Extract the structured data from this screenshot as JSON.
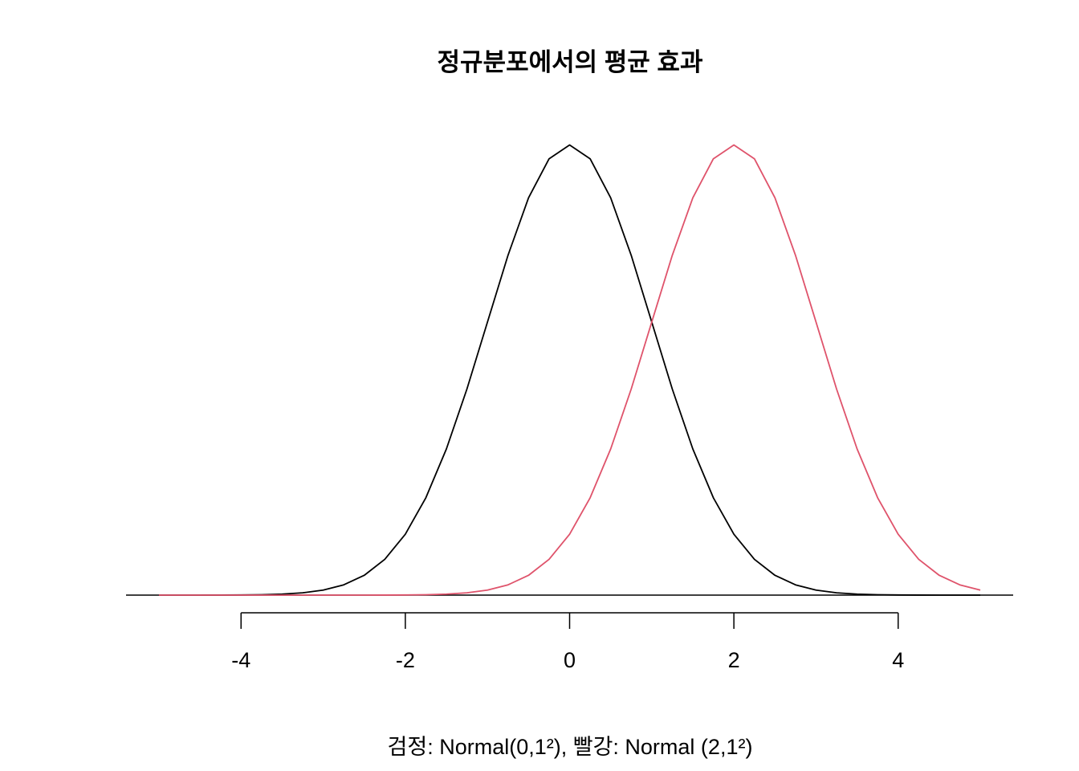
{
  "chart_data": {
    "type": "line",
    "title": "정규분포에서의 평균 효과",
    "xlabel": "검정: Normal(0,1²), 빨강: Normal (2,1²)",
    "x": [
      -5,
      -4.75,
      -4.5,
      -4.25,
      -4,
      -3.75,
      -3.5,
      -3.25,
      -3,
      -2.75,
      -2.5,
      -2.25,
      -2,
      -1.75,
      -1.5,
      -1.25,
      -1,
      -0.75,
      -0.5,
      -0.25,
      0,
      0.25,
      0.5,
      0.75,
      1,
      1.25,
      1.5,
      1.75,
      2,
      2.25,
      2.5,
      2.75,
      3,
      3.25,
      3.5,
      3.75,
      4,
      4.25,
      4.5,
      4.75,
      5
    ],
    "series": [
      {
        "name": "Normal(0,1²)",
        "color": "#000000",
        "values": [
          0,
          1e-05,
          2e-05,
          5e-05,
          0.00013,
          0.00035,
          0.00087,
          0.00203,
          0.00443,
          0.00909,
          0.01753,
          0.03174,
          0.05399,
          0.08628,
          0.12952,
          0.18265,
          0.24197,
          0.30114,
          0.35207,
          0.38667,
          0.39894,
          0.38667,
          0.35207,
          0.30114,
          0.24197,
          0.18265,
          0.12952,
          0.08628,
          0.05399,
          0.03174,
          0.01753,
          0.00909,
          0.00443,
          0.00203,
          0.00087,
          0.00035,
          0.00013,
          5e-05,
          2e-05,
          1e-05,
          0
        ]
      },
      {
        "name": "Normal (2,1²)",
        "color": "#DF536B",
        "values": [
          0,
          0,
          0,
          0,
          0,
          0,
          0,
          0,
          0,
          1e-05,
          2e-05,
          5e-05,
          0.00013,
          0.00035,
          0.00087,
          0.00203,
          0.00443,
          0.00909,
          0.01753,
          0.03174,
          0.05399,
          0.08628,
          0.12952,
          0.18265,
          0.24197,
          0.30114,
          0.35207,
          0.38667,
          0.39894,
          0.38667,
          0.35207,
          0.30114,
          0.24197,
          0.18265,
          0.12952,
          0.08628,
          0.05399,
          0.03174,
          0.01753,
          0.00909,
          0.00443
        ]
      }
    ],
    "xlim": [
      -5.4,
      5.4
    ],
    "ylim": [
      0,
      0.4
    ],
    "xticks": [
      -4,
      -2,
      0,
      2,
      4
    ],
    "hline": 0
  }
}
